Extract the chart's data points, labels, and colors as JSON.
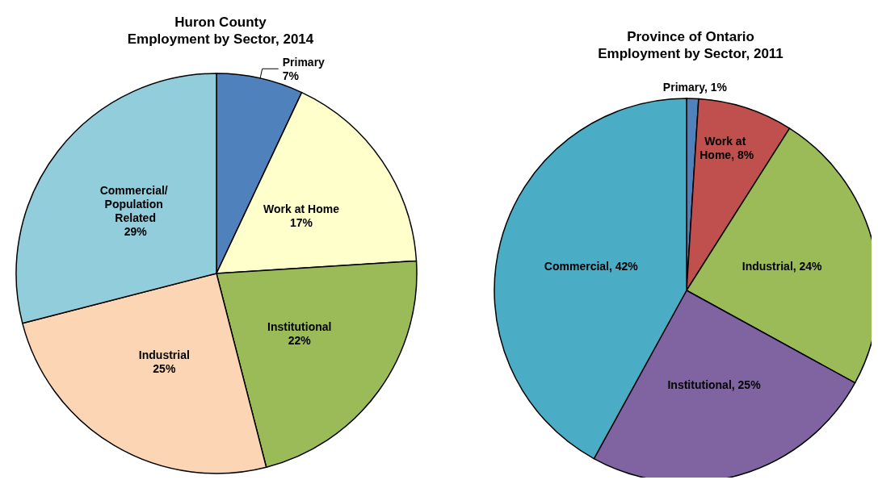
{
  "chart_data": [
    {
      "type": "pie",
      "title": "Huron County\nEmployment by Sector, 2014",
      "categories": [
        "Primary",
        "Work at Home",
        "Institutional",
        "Industrial",
        "Commercial/ Population Related"
      ],
      "values": [
        7,
        17,
        22,
        25,
        29
      ],
      "value_labels": [
        "7%",
        "17%",
        "22%",
        "25%",
        "29%"
      ],
      "colors": [
        "#4f81bd",
        "#ffffcc",
        "#9bbb59",
        "#fcd5b5",
        "#92cddc"
      ]
    },
    {
      "type": "pie",
      "title": "Province of Ontario\nEmployment by Sector, 2011",
      "categories": [
        "Primary",
        "Work at Home",
        "Industrial",
        "Institutional",
        "Commercial"
      ],
      "values": [
        1,
        8,
        24,
        25,
        42
      ],
      "value_labels": [
        "1%",
        "8%",
        "24%",
        "25%",
        "42%"
      ],
      "colors": [
        "#4f81bd",
        "#c0504d",
        "#9bbb59",
        "#8064a2",
        "#4bacc6"
      ]
    }
  ]
}
